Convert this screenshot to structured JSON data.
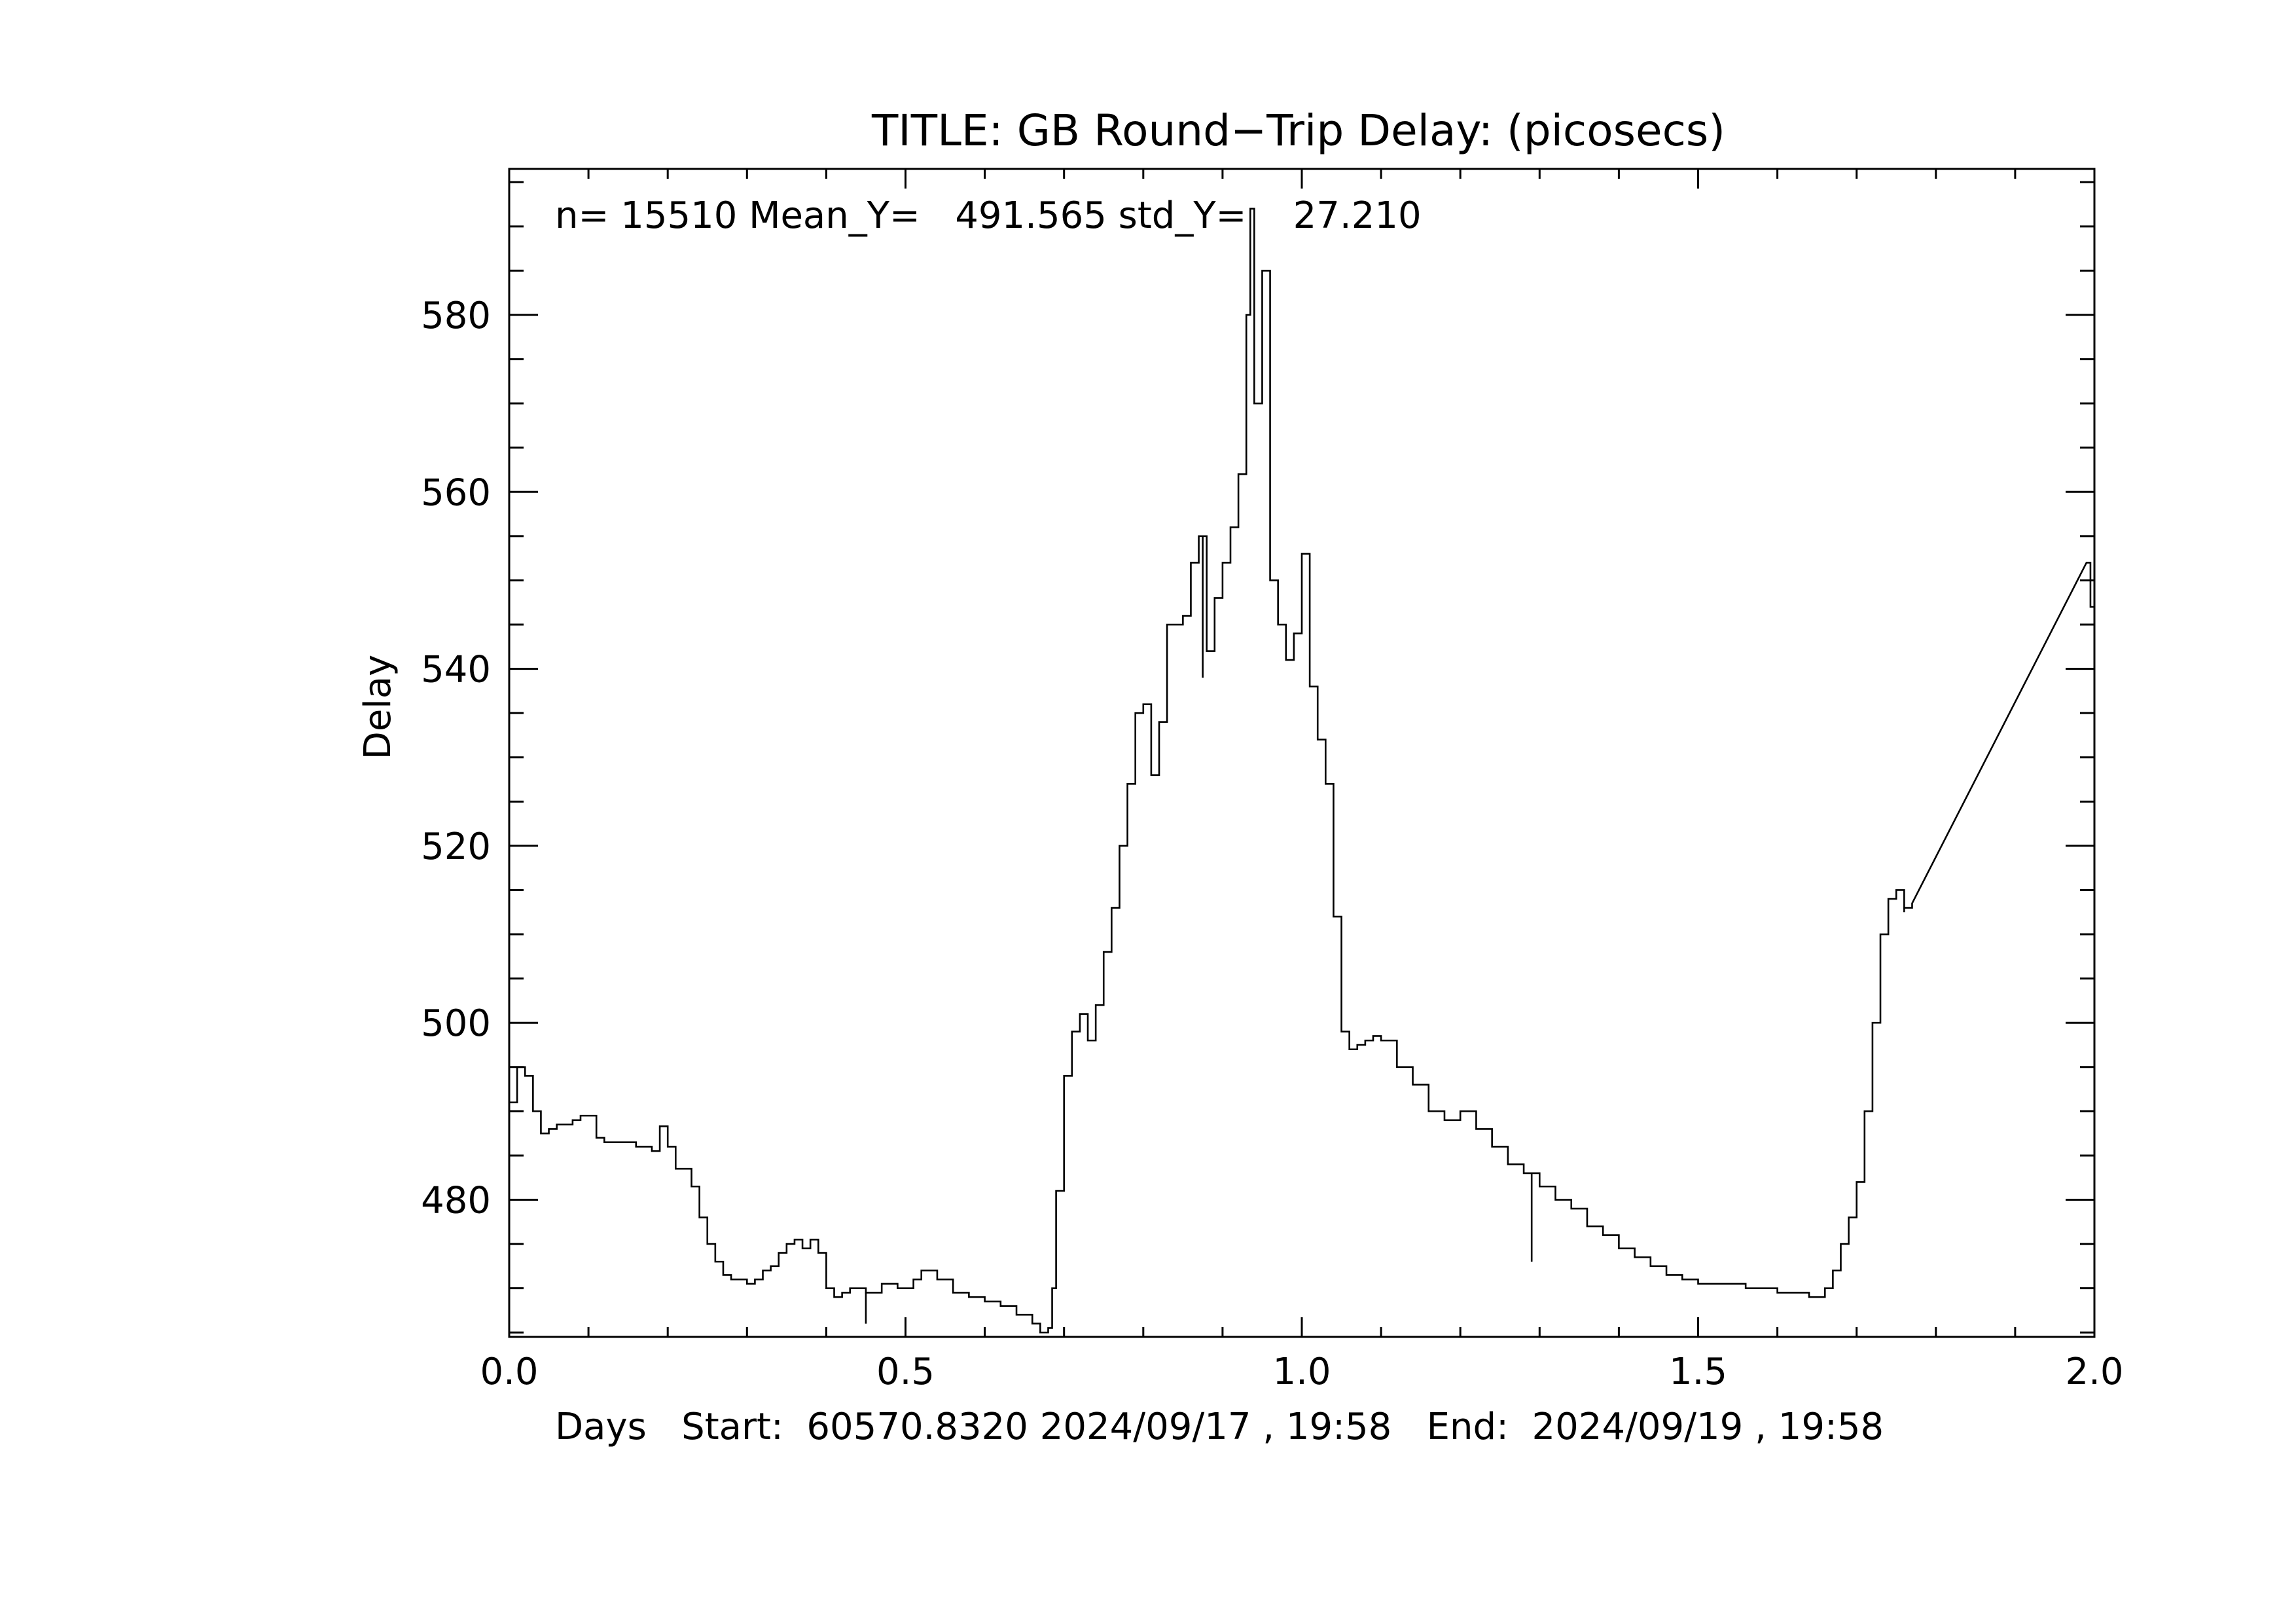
{
  "chart_data": {
    "type": "line",
    "title": "TITLE: GB Round−Trip Delay: (picosecs)",
    "stats_text": "n= 15510 Mean_Y=   491.565 std_Y=    27.210",
    "xlabel": "Days   Start:  60570.8320 2024/09/17 , 19:58   End:  2024/09/19 , 19:58",
    "ylabel": "Delay",
    "xlim": [
      0.0,
      2.0
    ],
    "ylim": [
      464.5,
      596.5
    ],
    "x_ticks": [
      0.0,
      0.5,
      1.0,
      1.5,
      2.0
    ],
    "x_tick_labels": [
      "0.0",
      "0.5",
      "1.0",
      "1.5",
      "2.0"
    ],
    "y_ticks": [
      480,
      500,
      520,
      540,
      560,
      580
    ],
    "y_tick_labels": [
      "480",
      "500",
      "520",
      "540",
      "560",
      "580"
    ],
    "grid": false,
    "color": "#000000",
    "series": [
      {
        "x": [
          0.0,
          0.01,
          0.02,
          0.03,
          0.04,
          0.05,
          0.06,
          0.08,
          0.09,
          0.1,
          0.11,
          0.12,
          0.14,
          0.16,
          0.18,
          0.19,
          0.2,
          0.21,
          0.23,
          0.24,
          0.25,
          0.26,
          0.27,
          0.28,
          0.3,
          0.31,
          0.32,
          0.33,
          0.34,
          0.35,
          0.36,
          0.37,
          0.38,
          0.39,
          0.4,
          0.41,
          0.42,
          0.43,
          0.45,
          0.47,
          0.49,
          0.51,
          0.52,
          0.54,
          0.56,
          0.58,
          0.6,
          0.62,
          0.64,
          0.66,
          0.67,
          0.68,
          0.685,
          0.69,
          0.7,
          0.71,
          0.72,
          0.73,
          0.74,
          0.75,
          0.76,
          0.77,
          0.78,
          0.79,
          0.8,
          0.81,
          0.82,
          0.83,
          0.84,
          0.85,
          0.86,
          0.87,
          0.88,
          0.89,
          0.9,
          0.91,
          0.92,
          0.93,
          0.935,
          0.94,
          0.95,
          0.96,
          0.97,
          0.98,
          0.99,
          1.0,
          1.01,
          1.02,
          1.03,
          1.04,
          1.05,
          1.06,
          1.07,
          1.08,
          1.09,
          1.1,
          1.12,
          1.14,
          1.16,
          1.18,
          1.2,
          1.22,
          1.24,
          1.26,
          1.28,
          1.3,
          1.32,
          1.34,
          1.36,
          1.38,
          1.4,
          1.42,
          1.44,
          1.46,
          1.48,
          1.5,
          1.52,
          1.54,
          1.56,
          1.58,
          1.6,
          1.62,
          1.64,
          1.65,
          1.66,
          1.67,
          1.68,
          1.69,
          1.7,
          1.71,
          1.72,
          1.73,
          1.74,
          1.75,
          1.76,
          1.77,
          1.99,
          1.995,
          2.0
        ],
        "y": [
          491,
          495,
          494,
          490,
          487.5,
          488,
          488.5,
          489,
          489.5,
          489.5,
          487,
          486.5,
          486.5,
          486,
          485.5,
          488.3,
          486,
          483.5,
          481.5,
          478,
          475,
          473,
          471.5,
          471,
          470.5,
          471,
          472,
          472.5,
          474,
          475,
          475.5,
          474.5,
          475.5,
          474,
          470,
          469,
          469.5,
          470,
          469.5,
          470.5,
          470,
          471,
          472,
          471,
          469.5,
          469,
          468.5,
          468,
          467,
          466,
          465,
          465.5,
          470,
          481,
          494,
          499,
          501,
          498,
          502,
          508,
          513,
          520,
          527,
          535,
          536,
          528,
          534,
          545,
          545,
          546,
          552,
          555,
          542,
          548,
          552,
          556,
          562,
          580,
          592,
          570,
          585,
          550,
          545,
          541,
          544,
          553,
          538,
          532,
          527,
          512,
          499,
          497,
          497.5,
          498,
          498.5,
          498,
          495,
          493,
          490,
          489,
          490,
          488,
          486,
          484,
          483,
          481.5,
          480,
          479,
          477,
          476,
          474.5,
          473.5,
          472.5,
          471.5,
          471,
          470.5,
          470.5,
          470.5,
          470,
          470,
          469.5,
          469.5,
          469,
          469,
          470,
          472,
          475,
          478,
          482,
          490,
          500,
          510,
          514,
          515,
          513,
          513.5,
          552,
          547,
          545
        ]
      }
    ],
    "spikes": [
      {
        "x": 0.45,
        "y_low": 466
      },
      {
        "x": 0.875,
        "y_low": 539
      },
      {
        "x": 1.29,
        "y_low": 473
      },
      {
        "x": 1.76,
        "y_low": 512.5
      }
    ]
  }
}
